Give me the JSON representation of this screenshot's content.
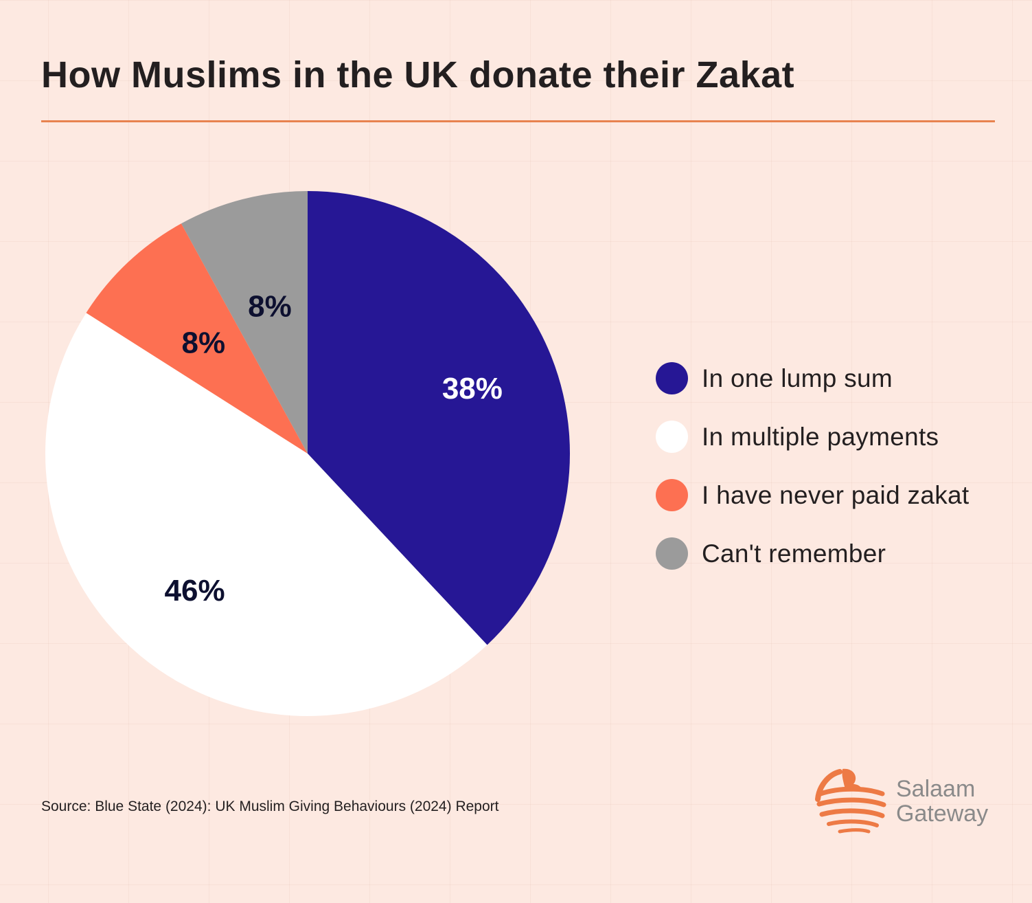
{
  "title": "How Muslims in the UK donate their Zakat",
  "source": "Source: Blue State (2024): UK Muslim Giving Behaviours (2024) Report",
  "brand": {
    "line1": "Salaam",
    "line2": "Gateway",
    "color": "#ed7a45"
  },
  "colors": {
    "background": "#fde9e1",
    "rule": "#e8824f"
  },
  "chart_data": {
    "type": "pie",
    "start": "12 o'clock",
    "direction": "clockwise",
    "slices": [
      {
        "label": "In one lump sum",
        "value": 38,
        "display": "38%",
        "color": "#261795",
        "label_color": "#ffffff"
      },
      {
        "label": "In multiple payments",
        "value": 46,
        "display": "46%",
        "color": "#ffffff",
        "label_color": "#0d1030"
      },
      {
        "label": "I have never paid zakat",
        "value": 8,
        "display": "8%",
        "color": "#fd7052",
        "label_color": "#0d1030"
      },
      {
        "label": "Can't remember",
        "value": 8,
        "display": "8%",
        "color": "#9b9b9b",
        "label_color": "#0d1030"
      }
    ],
    "legend_position": "right"
  }
}
